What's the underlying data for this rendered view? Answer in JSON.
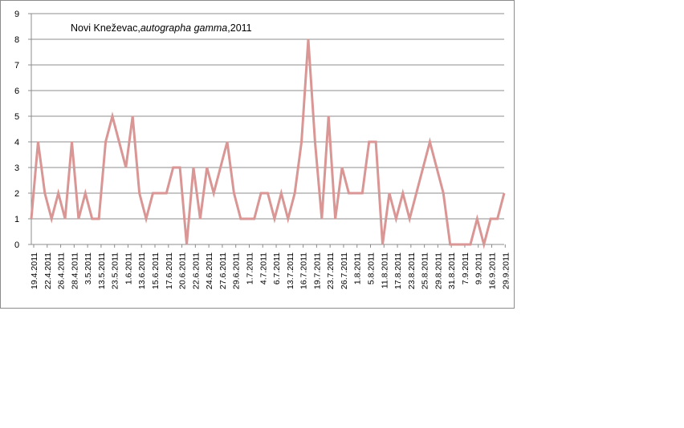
{
  "chart_data": {
    "type": "line",
    "title_parts": [
      "Novi Kneževac,",
      "autographa gamma",
      ",2011"
    ],
    "xlabel": "",
    "ylabel": "",
    "ylim": [
      0,
      9
    ],
    "yticks": [
      0,
      1,
      2,
      3,
      4,
      5,
      6,
      7,
      8,
      9
    ],
    "grid": true,
    "legend": "none",
    "line_color": "#d99694",
    "tick_labels": [
      "19.4.2011",
      "22.4.2011",
      "26.4.2011",
      "28.4.2011",
      "3.5.2011",
      "13.5.2011",
      "23.5.2011",
      "1.6.2011",
      "13.6.2011",
      "15.6.2011",
      "17.6.2011",
      "20.6.2011",
      "22.6.2011",
      "24.6.2011",
      "27.6.2011",
      "29.6.2011",
      "1.7.2011",
      "4.7.2011",
      "6.7.2011",
      "13.7.2011",
      "16.7.2011",
      "19.7.2011",
      "23.7.2011",
      "26.7.2011",
      "1.8.2011",
      "5.8.2011",
      "11.8.2011",
      "17.8.2011",
      "23.8.2011",
      "25.8.2011",
      "29.8.2011",
      "31.8.2011",
      "7.9.2011",
      "9.9.2011",
      "16.9.2011",
      "29.9.2011"
    ],
    "series": [
      {
        "values": [
          1,
          4,
          2,
          1,
          2,
          1,
          4,
          1,
          2,
          1,
          1,
          4,
          5,
          4,
          3,
          5,
          2,
          1,
          2,
          2,
          2,
          3,
          3,
          0,
          3,
          1,
          3,
          2,
          3,
          4,
          2,
          1,
          1,
          1,
          2,
          2,
          1,
          2,
          1,
          2,
          4,
          8,
          4,
          1,
          5,
          1,
          3,
          2,
          2,
          2,
          4,
          4,
          0,
          2,
          1,
          2,
          1,
          2,
          3,
          4,
          3,
          2,
          0,
          0,
          0,
          0,
          1,
          0,
          1,
          1,
          2
        ]
      }
    ]
  }
}
